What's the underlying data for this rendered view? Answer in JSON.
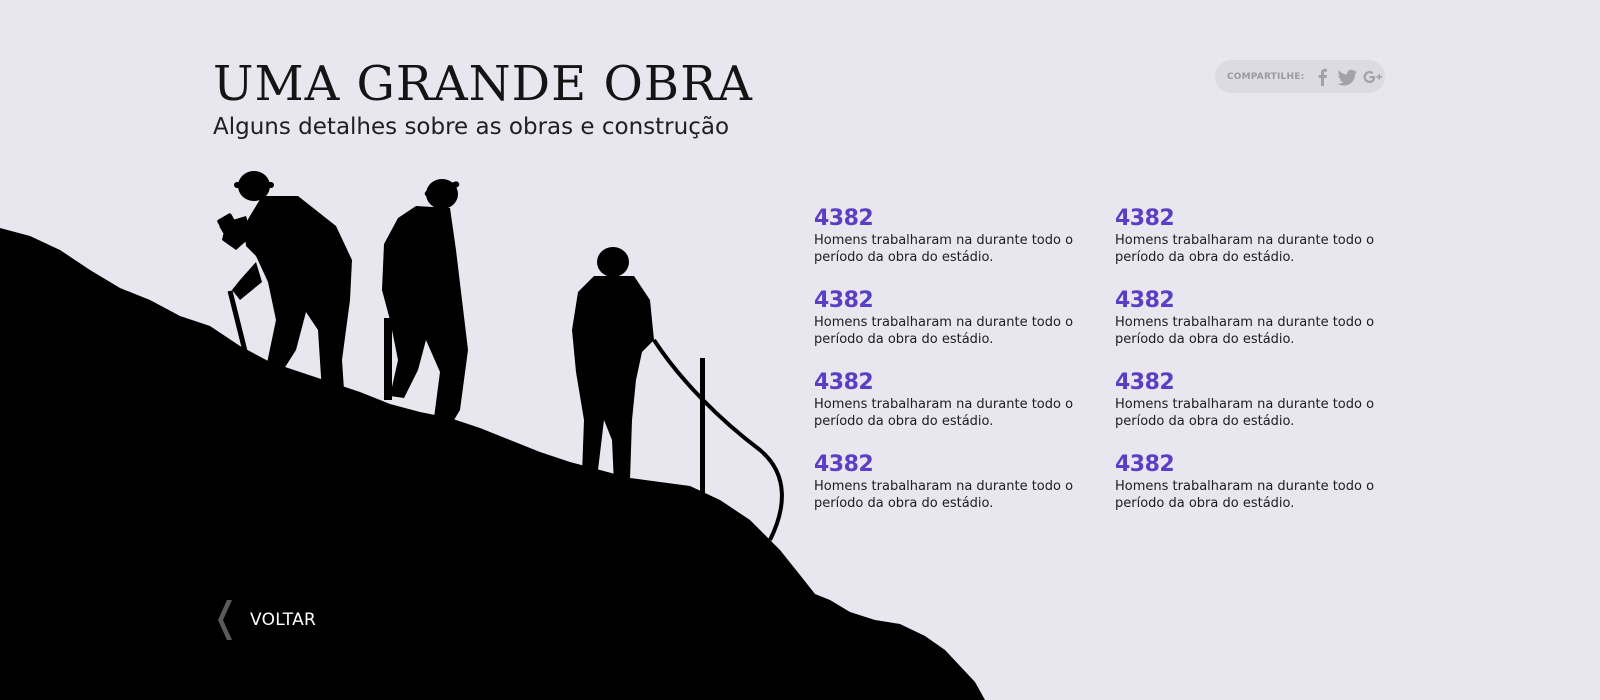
{
  "header": {
    "title": "UMA GRANDE OBRA",
    "subtitle": "Alguns detalhes sobre as obras e construção"
  },
  "share": {
    "label": "COMPARTILHE:",
    "icons": [
      "facebook-icon",
      "twitter-icon",
      "google-plus-icon"
    ]
  },
  "stats": [
    {
      "number": "4382",
      "text": "Homens trabalharam na durante todo o período da obra do estádio."
    },
    {
      "number": "4382",
      "text": "Homens trabalharam na durante todo o período da obra do estádio."
    },
    {
      "number": "4382",
      "text": "Homens trabalharam na durante todo o período da obra do estádio."
    },
    {
      "number": "4382",
      "text": "Homens trabalharam na durante todo o período da obra do estádio."
    },
    {
      "number": "4382",
      "text": "Homens trabalharam na durante todo o período da obra do estádio."
    },
    {
      "number": "4382",
      "text": "Homens trabalharam na durante todo o período da obra do estádio."
    },
    {
      "number": "4382",
      "text": "Homens trabalharam na durante todo o período da obra do estádio."
    },
    {
      "number": "4382",
      "text": "Homens trabalharam na durante todo o período da obra do estádio."
    }
  ],
  "back": {
    "label": "VOLTAR",
    "icon": "chevron-left-icon"
  },
  "colors": {
    "background": "#e8e6ee",
    "accent": "#5a3fc4",
    "silhouette": "#000000",
    "share_pill": "#dcdae2"
  }
}
